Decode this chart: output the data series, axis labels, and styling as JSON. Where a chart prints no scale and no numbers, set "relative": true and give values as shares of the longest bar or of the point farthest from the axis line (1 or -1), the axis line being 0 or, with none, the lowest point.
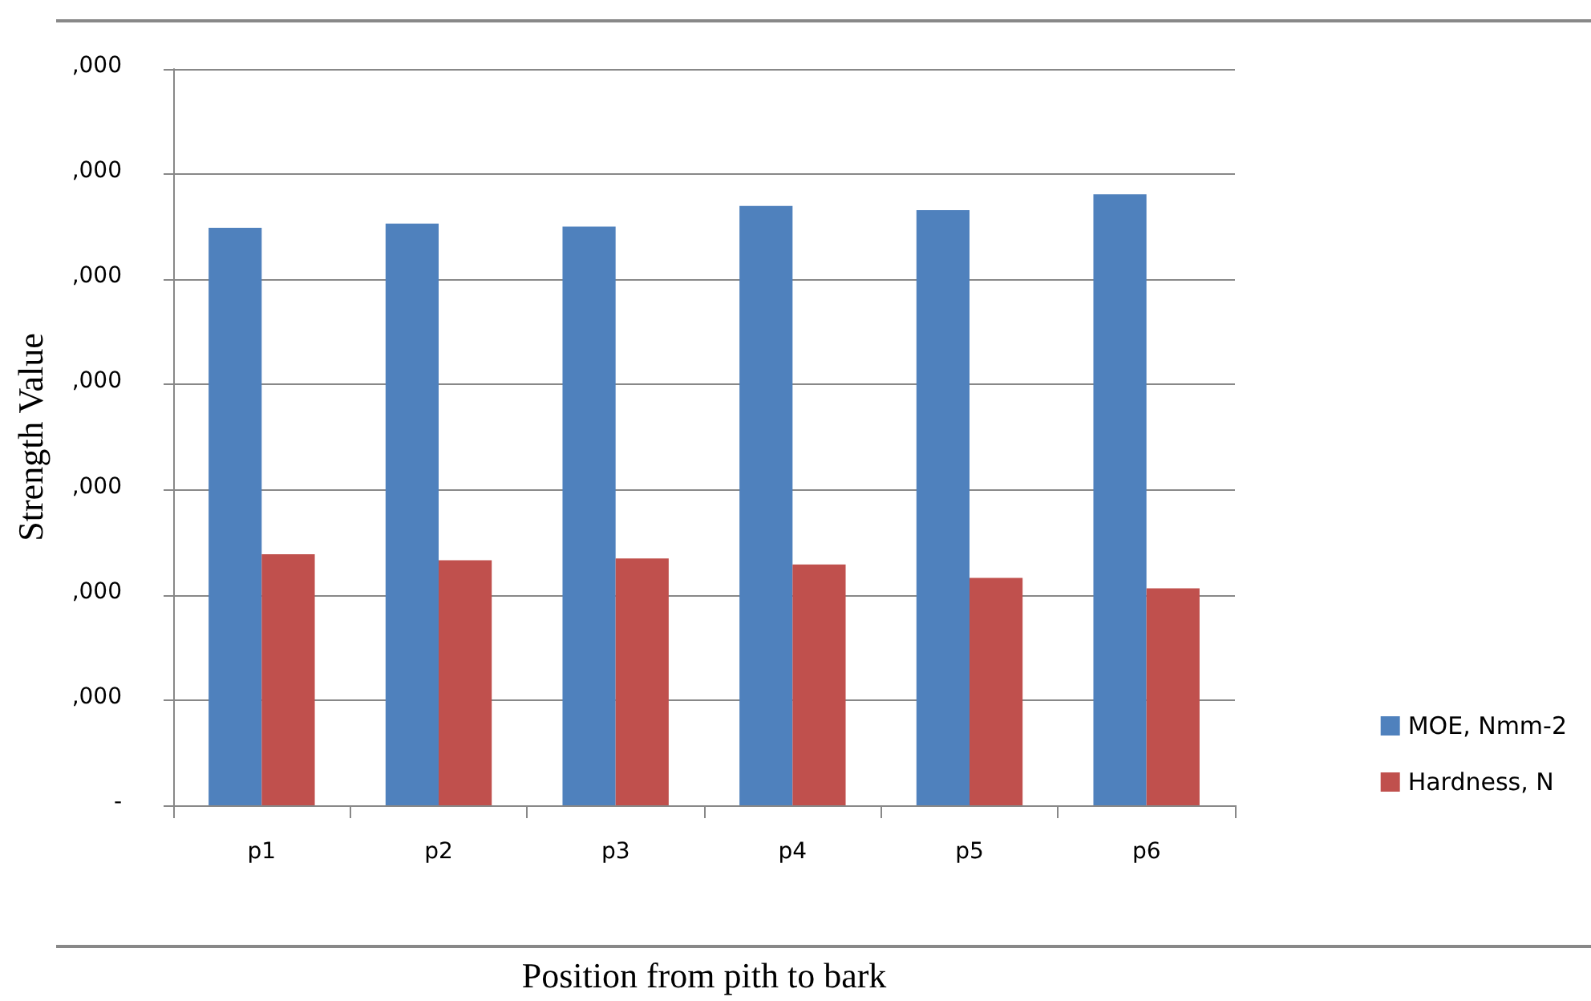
{
  "chart_data": {
    "type": "bar",
    "xlabel": "Position from pith to bark",
    "ylabel": "Strength Value",
    "categories": [
      "p1",
      "p2",
      "p3",
      "p4",
      "p5",
      "p6"
    ],
    "series": [
      {
        "name": "MOE, Nmm-2",
        "color": "#4f81bd",
        "values": [
          0.945,
          0.952,
          0.947,
          0.981,
          0.974,
          1
        ]
      },
      {
        "name": "Hardness, N",
        "color": "#c0504d",
        "values": [
          0.411,
          0.401,
          0.404,
          0.394,
          0.372,
          0.355
        ]
      }
    ],
    "relative": true,
    "annotations": [
      "-",
      ",000",
      ",000",
      ",000",
      ",000",
      ",000",
      ",000",
      ",000"
    ],
    "grid": "y",
    "legend": "right"
  }
}
